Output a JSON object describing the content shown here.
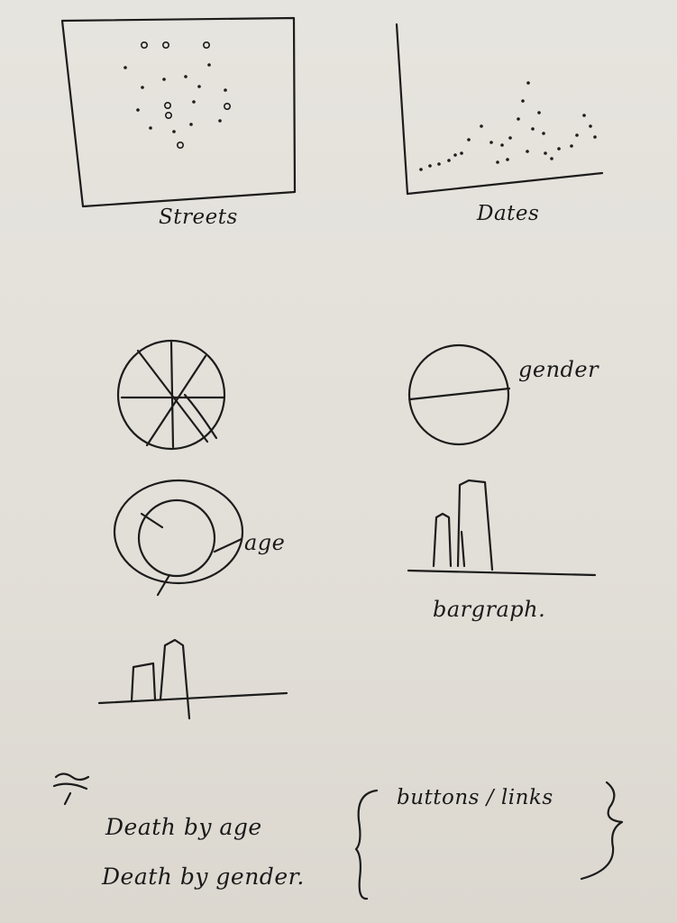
{
  "labels": {
    "streets": "Streets",
    "dates": "Dates",
    "gender": "gender",
    "age": "age",
    "bargraph": "bargraph."
  },
  "links_note": "buttons / links",
  "links": [
    {
      "label": "Death by age"
    },
    {
      "label": "Death by gender."
    }
  ],
  "ink_color": "#1c1c1c",
  "paper_color": "#e3e0d9"
}
